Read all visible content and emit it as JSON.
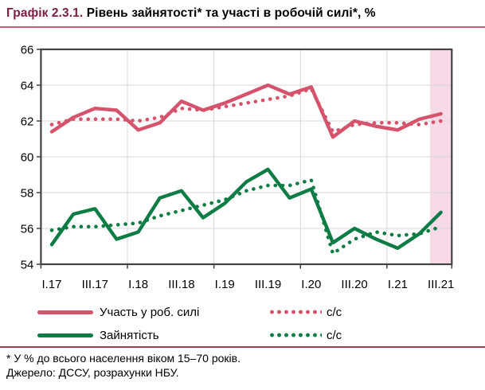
{
  "header": {
    "figure_label": "Графік 2.3.1.",
    "title": "Рівень зайнятості* та участі в робочій силі*, %"
  },
  "legend": {
    "participation_label": "Участь у роб. силі",
    "participation_sa_label": "с/с",
    "employment_label": "Зайнятість",
    "employment_sa_label": "с/с"
  },
  "footnotes": {
    "note": "* У % до всього населення віком 15–70 років.",
    "source": "Джерело: ДССУ, розрахунки НБУ."
  },
  "colors": {
    "participation": "#d5536c",
    "employment": "#0e7d45",
    "highlight_band": "#f8d9e7",
    "grid": "#d9d9d9",
    "axis": "#424242",
    "title_accent": "#7d1b43",
    "rule_top": "#cf5a73",
    "rule_bottom": "#9e4054",
    "text": "#000000"
  },
  "chart_data": {
    "type": "line",
    "title": "Рівень зайнятості та участі в робочій силі, %",
    "xlabel": "",
    "ylabel": "",
    "ylim": [
      54,
      66
    ],
    "y_ticks": [
      66,
      64,
      62,
      60,
      58,
      56,
      54
    ],
    "n_points": 19,
    "x_tick_labels": [
      "I.17",
      "III.17",
      "I.18",
      "III.18",
      "I.19",
      "III.19",
      "I.20",
      "III.20",
      "I.21",
      "III.21"
    ],
    "x_tick_point_indexes": [
      0,
      2,
      4,
      6,
      8,
      10,
      12,
      14,
      16,
      18
    ],
    "year_boundary_indexes": [
      4,
      8,
      12,
      16
    ],
    "grid": "on",
    "legend_position": "bottom",
    "highlight_last_point_band": true,
    "series": [
      {
        "name": "Участь у роб. силі",
        "style": "solid",
        "color_key": "participation",
        "values": [
          61.4,
          62.2,
          62.7,
          62.6,
          61.5,
          61.9,
          63.1,
          62.6,
          63.0,
          63.5,
          64.0,
          63.5,
          63.9,
          61.1,
          62.0,
          61.7,
          61.5,
          62.1,
          62.4
        ]
      },
      {
        "name": "Участь у роб. силі (с/с)",
        "style": "dotted",
        "color_key": "participation",
        "values": [
          61.8,
          62.1,
          62.1,
          62.1,
          62.0,
          62.2,
          62.7,
          62.6,
          62.8,
          63.0,
          63.2,
          63.4,
          63.8,
          61.4,
          61.8,
          61.9,
          61.9,
          61.8,
          62.0
        ]
      },
      {
        "name": "Зайнятість",
        "style": "solid",
        "color_key": "employment",
        "values": [
          55.1,
          56.8,
          57.1,
          55.4,
          55.8,
          57.7,
          58.1,
          56.6,
          57.4,
          58.6,
          59.3,
          57.7,
          58.2,
          55.2,
          56.0,
          55.4,
          54.9,
          55.7,
          56.9
        ]
      },
      {
        "name": "Зайнятість (с/с)",
        "style": "dotted",
        "color_key": "employment",
        "values": [
          55.9,
          56.1,
          56.1,
          56.2,
          56.3,
          56.7,
          57.0,
          57.3,
          57.6,
          58.1,
          58.4,
          58.4,
          58.7,
          54.6,
          55.4,
          55.8,
          55.6,
          55.7,
          56.1
        ]
      }
    ]
  }
}
